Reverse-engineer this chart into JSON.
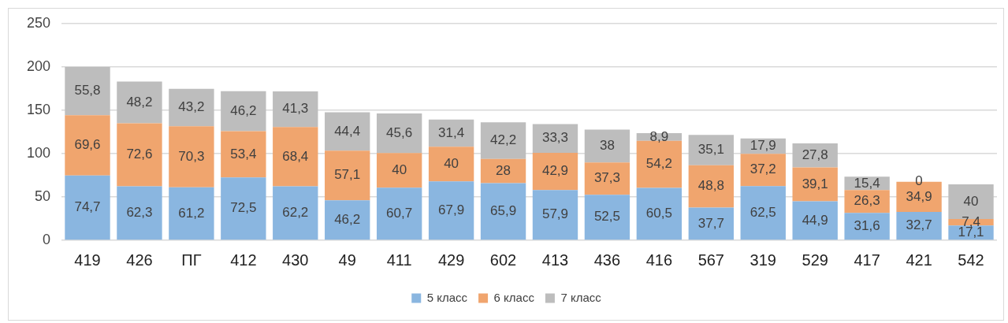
{
  "chart_data": {
    "type": "bar",
    "stacked": true,
    "categories": [
      "419",
      "426",
      "ПГ",
      "412",
      "430",
      "49",
      "411",
      "429",
      "602",
      "413",
      "436",
      "416",
      "567",
      "319",
      "529",
      "417",
      "421",
      "542"
    ],
    "series": [
      {
        "name": "5 класс",
        "color": "#8ab6e0",
        "values": [
          74.7,
          62.3,
          61.2,
          72.5,
          62.2,
          46.2,
          60.7,
          67.9,
          65.9,
          57.9,
          52.5,
          60.5,
          37.7,
          62.5,
          44.9,
          31.6,
          32.7,
          17.1
        ],
        "value_labels": [
          "74,7",
          "62,3",
          "61,2",
          "72,5",
          "62,2",
          "46,2",
          "60,7",
          "67,9",
          "65,9",
          "57,9",
          "52,5",
          "60,5",
          "37,7",
          "62,5",
          "44,9",
          "31,6",
          "32,7",
          "17,1"
        ]
      },
      {
        "name": "6 класс",
        "color": "#f0a56e",
        "values": [
          69.6,
          72.6,
          70.3,
          53.4,
          68.4,
          57.1,
          40,
          40,
          28,
          42.9,
          37.3,
          54.2,
          48.8,
          37.2,
          39.1,
          26.3,
          34.9,
          7.4
        ],
        "value_labels": [
          "69,6",
          "72,6",
          "70,3",
          "53,4",
          "68,4",
          "57,1",
          "40",
          "40",
          "28",
          "42,9",
          "37,3",
          "54,2",
          "48,8",
          "37,2",
          "39,1",
          "26,3",
          "34,9",
          "7,4"
        ]
      },
      {
        "name": "7 класс",
        "color": "#bdbdbd",
        "values": [
          55.8,
          48.2,
          43.2,
          46.2,
          41.3,
          44.4,
          45.6,
          31.4,
          42.2,
          33.3,
          38,
          8.9,
          35.1,
          17.9,
          27.8,
          15.4,
          0,
          40
        ],
        "value_labels": [
          "55,8",
          "48,2",
          "43,2",
          "46,2",
          "41,3",
          "44,4",
          "45,6",
          "31,4",
          "42,2",
          "33,3",
          "38",
          "8,9",
          "35,1",
          "17,9",
          "27,8",
          "15,4",
          "0",
          "40"
        ]
      }
    ],
    "ylim": [
      0,
      250
    ],
    "yticks": [
      0,
      50,
      100,
      150,
      200,
      250
    ],
    "grid": "y",
    "legend": "bottom"
  }
}
